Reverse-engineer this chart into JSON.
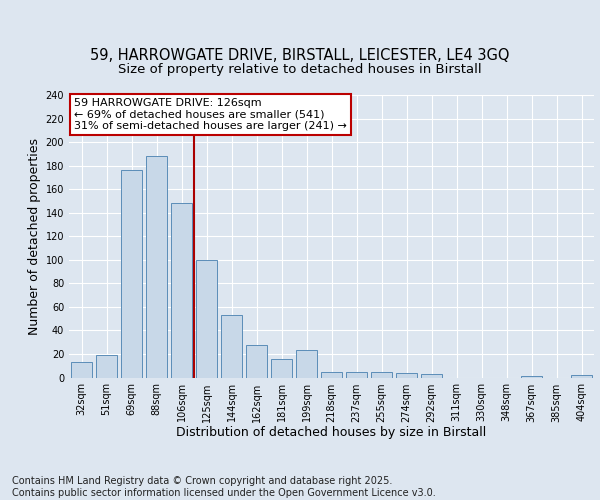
{
  "title_line1": "59, HARROWGATE DRIVE, BIRSTALL, LEICESTER, LE4 3GQ",
  "title_line2": "Size of property relative to detached houses in Birstall",
  "xlabel": "Distribution of detached houses by size in Birstall",
  "ylabel": "Number of detached properties",
  "footer": "Contains HM Land Registry data © Crown copyright and database right 2025.\nContains public sector information licensed under the Open Government Licence v3.0.",
  "categories": [
    "32sqm",
    "51sqm",
    "69sqm",
    "88sqm",
    "106sqm",
    "125sqm",
    "144sqm",
    "162sqm",
    "181sqm",
    "199sqm",
    "218sqm",
    "237sqm",
    "255sqm",
    "274sqm",
    "292sqm",
    "311sqm",
    "330sqm",
    "348sqm",
    "367sqm",
    "385sqm",
    "404sqm"
  ],
  "values": [
    13,
    19,
    176,
    188,
    148,
    100,
    53,
    28,
    16,
    23,
    5,
    5,
    5,
    4,
    3,
    0,
    0,
    0,
    1,
    0,
    2
  ],
  "bar_color": "#c8d8e8",
  "bar_edge_color": "#5b8db8",
  "bar_width": 0.85,
  "vline_x_idx": 4,
  "vline_color": "#aa0000",
  "annotation_text": "59 HARROWGATE DRIVE: 126sqm\n← 69% of detached houses are smaller (541)\n31% of semi-detached houses are larger (241) →",
  "annotation_box_color": "#ffffff",
  "annotation_edge_color": "#bb0000",
  "ylim": [
    0,
    240
  ],
  "yticks": [
    0,
    20,
    40,
    60,
    80,
    100,
    120,
    140,
    160,
    180,
    200,
    220,
    240
  ],
  "bg_color": "#dde6f0",
  "plot_bg_color": "#dde6f0",
  "grid_color": "#ffffff",
  "title_fontsize": 10.5,
  "subtitle_fontsize": 9.5,
  "label_fontsize": 9,
  "tick_fontsize": 7,
  "annot_fontsize": 8,
  "footer_fontsize": 7
}
